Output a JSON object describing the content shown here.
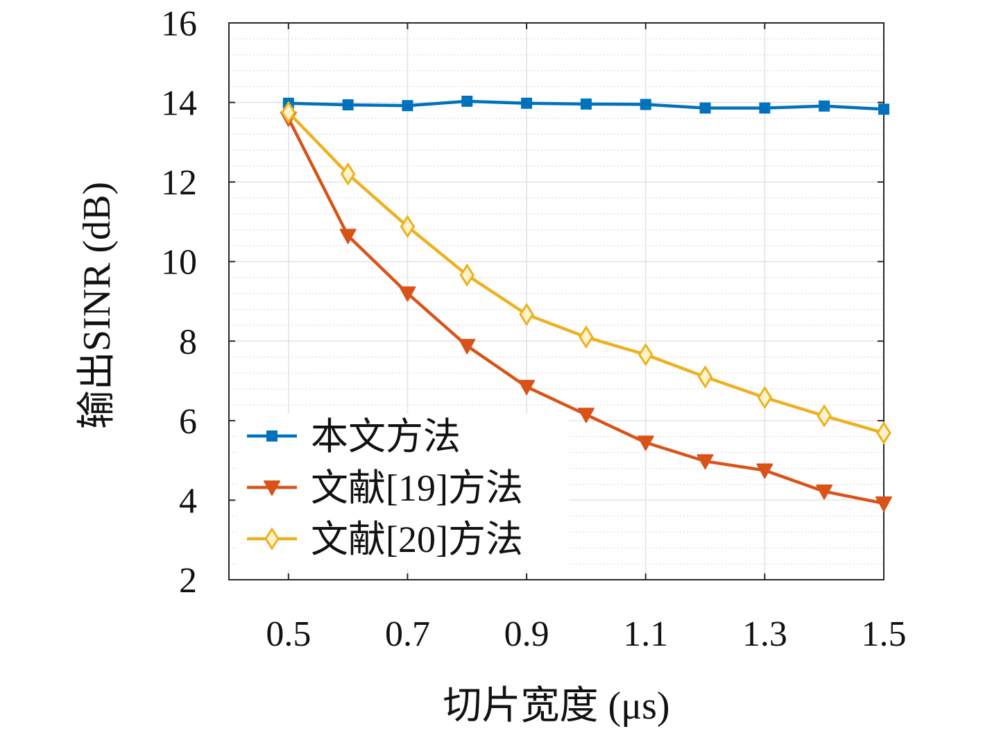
{
  "chart_data": {
    "type": "line",
    "xlabel": "切片宽度 (μs)",
    "ylabel": "输出SINR (dB)",
    "xlim": [
      0.4,
      1.5
    ],
    "ylim": [
      2,
      16
    ],
    "xticks": [
      0.5,
      0.7,
      0.9,
      1.1,
      1.3,
      1.5
    ],
    "xtick_labels": [
      "0.5",
      "0.7",
      "0.9",
      "1.1",
      "1.3",
      "1.5"
    ],
    "yticks": [
      2,
      4,
      6,
      8,
      10,
      12,
      14,
      16
    ],
    "ytick_labels": [
      "2",
      "4",
      "6",
      "8",
      "10",
      "12",
      "14",
      "16"
    ],
    "grid": true,
    "legend_position": "bottom-left",
    "x": [
      0.5,
      0.6,
      0.7,
      0.8,
      0.9,
      1.0,
      1.1,
      1.2,
      1.3,
      1.4,
      1.5
    ],
    "series": [
      {
        "name": "本文方法",
        "marker": "square",
        "color": "#0072BD",
        "values": [
          13.98,
          13.94,
          13.92,
          14.03,
          13.98,
          13.96,
          13.95,
          13.86,
          13.86,
          13.91,
          13.83
        ]
      },
      {
        "name": "文献[19]方法",
        "marker": "triangle-down",
        "color": "#D95319",
        "values": [
          13.6,
          10.65,
          9.2,
          7.88,
          6.85,
          6.15,
          5.45,
          4.98,
          4.75,
          4.22,
          3.92
        ]
      },
      {
        "name": "文献[20]方法",
        "marker": "diamond",
        "color": "#EDB120",
        "values": [
          13.75,
          12.2,
          10.88,
          9.66,
          8.67,
          8.1,
          7.66,
          7.1,
          6.58,
          6.12,
          5.69
        ]
      }
    ]
  }
}
